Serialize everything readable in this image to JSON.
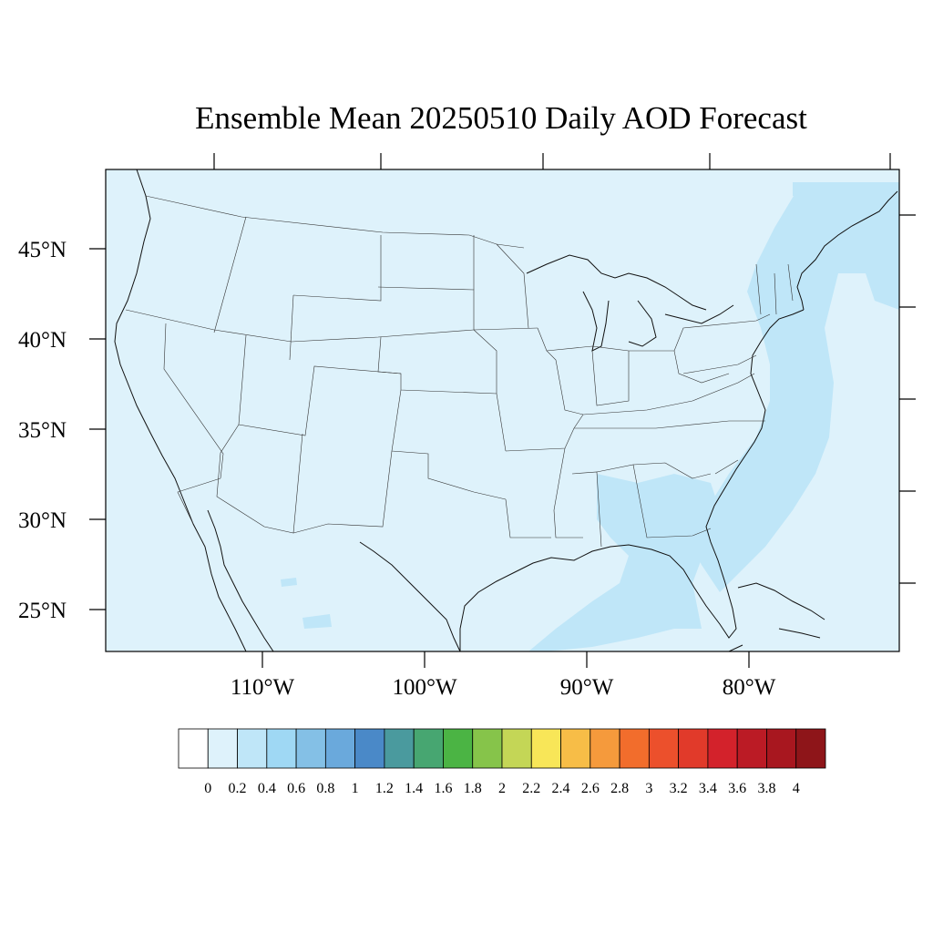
{
  "title": "Ensemble Mean 20250510 Daily AOD Forecast",
  "lat_labels": [
    "45°N",
    "40°N",
    "35°N",
    "30°N",
    "25°N"
  ],
  "lon_labels": [
    "110°W",
    "100°W",
    "90°W",
    "80°W"
  ],
  "colorbar": {
    "labels": [
      "0",
      "0.2",
      "0.4",
      "0.6",
      "0.8",
      "1",
      "1.2",
      "1.4",
      "1.6",
      "1.8",
      "2",
      "2.2",
      "2.4",
      "2.6",
      "2.8",
      "3",
      "3.2",
      "3.4",
      "3.6",
      "3.8",
      "4"
    ],
    "colors": [
      "#ffffff",
      "#def2fb",
      "#bfe6f8",
      "#9fd8f4",
      "#84c0e6",
      "#6aa9dc",
      "#4a89c8",
      "#4a9a9e",
      "#47a671",
      "#4bb444",
      "#86c44a",
      "#c4d656",
      "#f8e658",
      "#f7bd47",
      "#f59a3c",
      "#f26d2c",
      "#ec502c",
      "#e13a2a",
      "#d3222b",
      "#bb1b25",
      "#a8171f",
      "#8e1519"
    ]
  },
  "map": {
    "background_color": "#def2fb",
    "plume_color": "#bfe6f8",
    "border_color": "#333333"
  }
}
